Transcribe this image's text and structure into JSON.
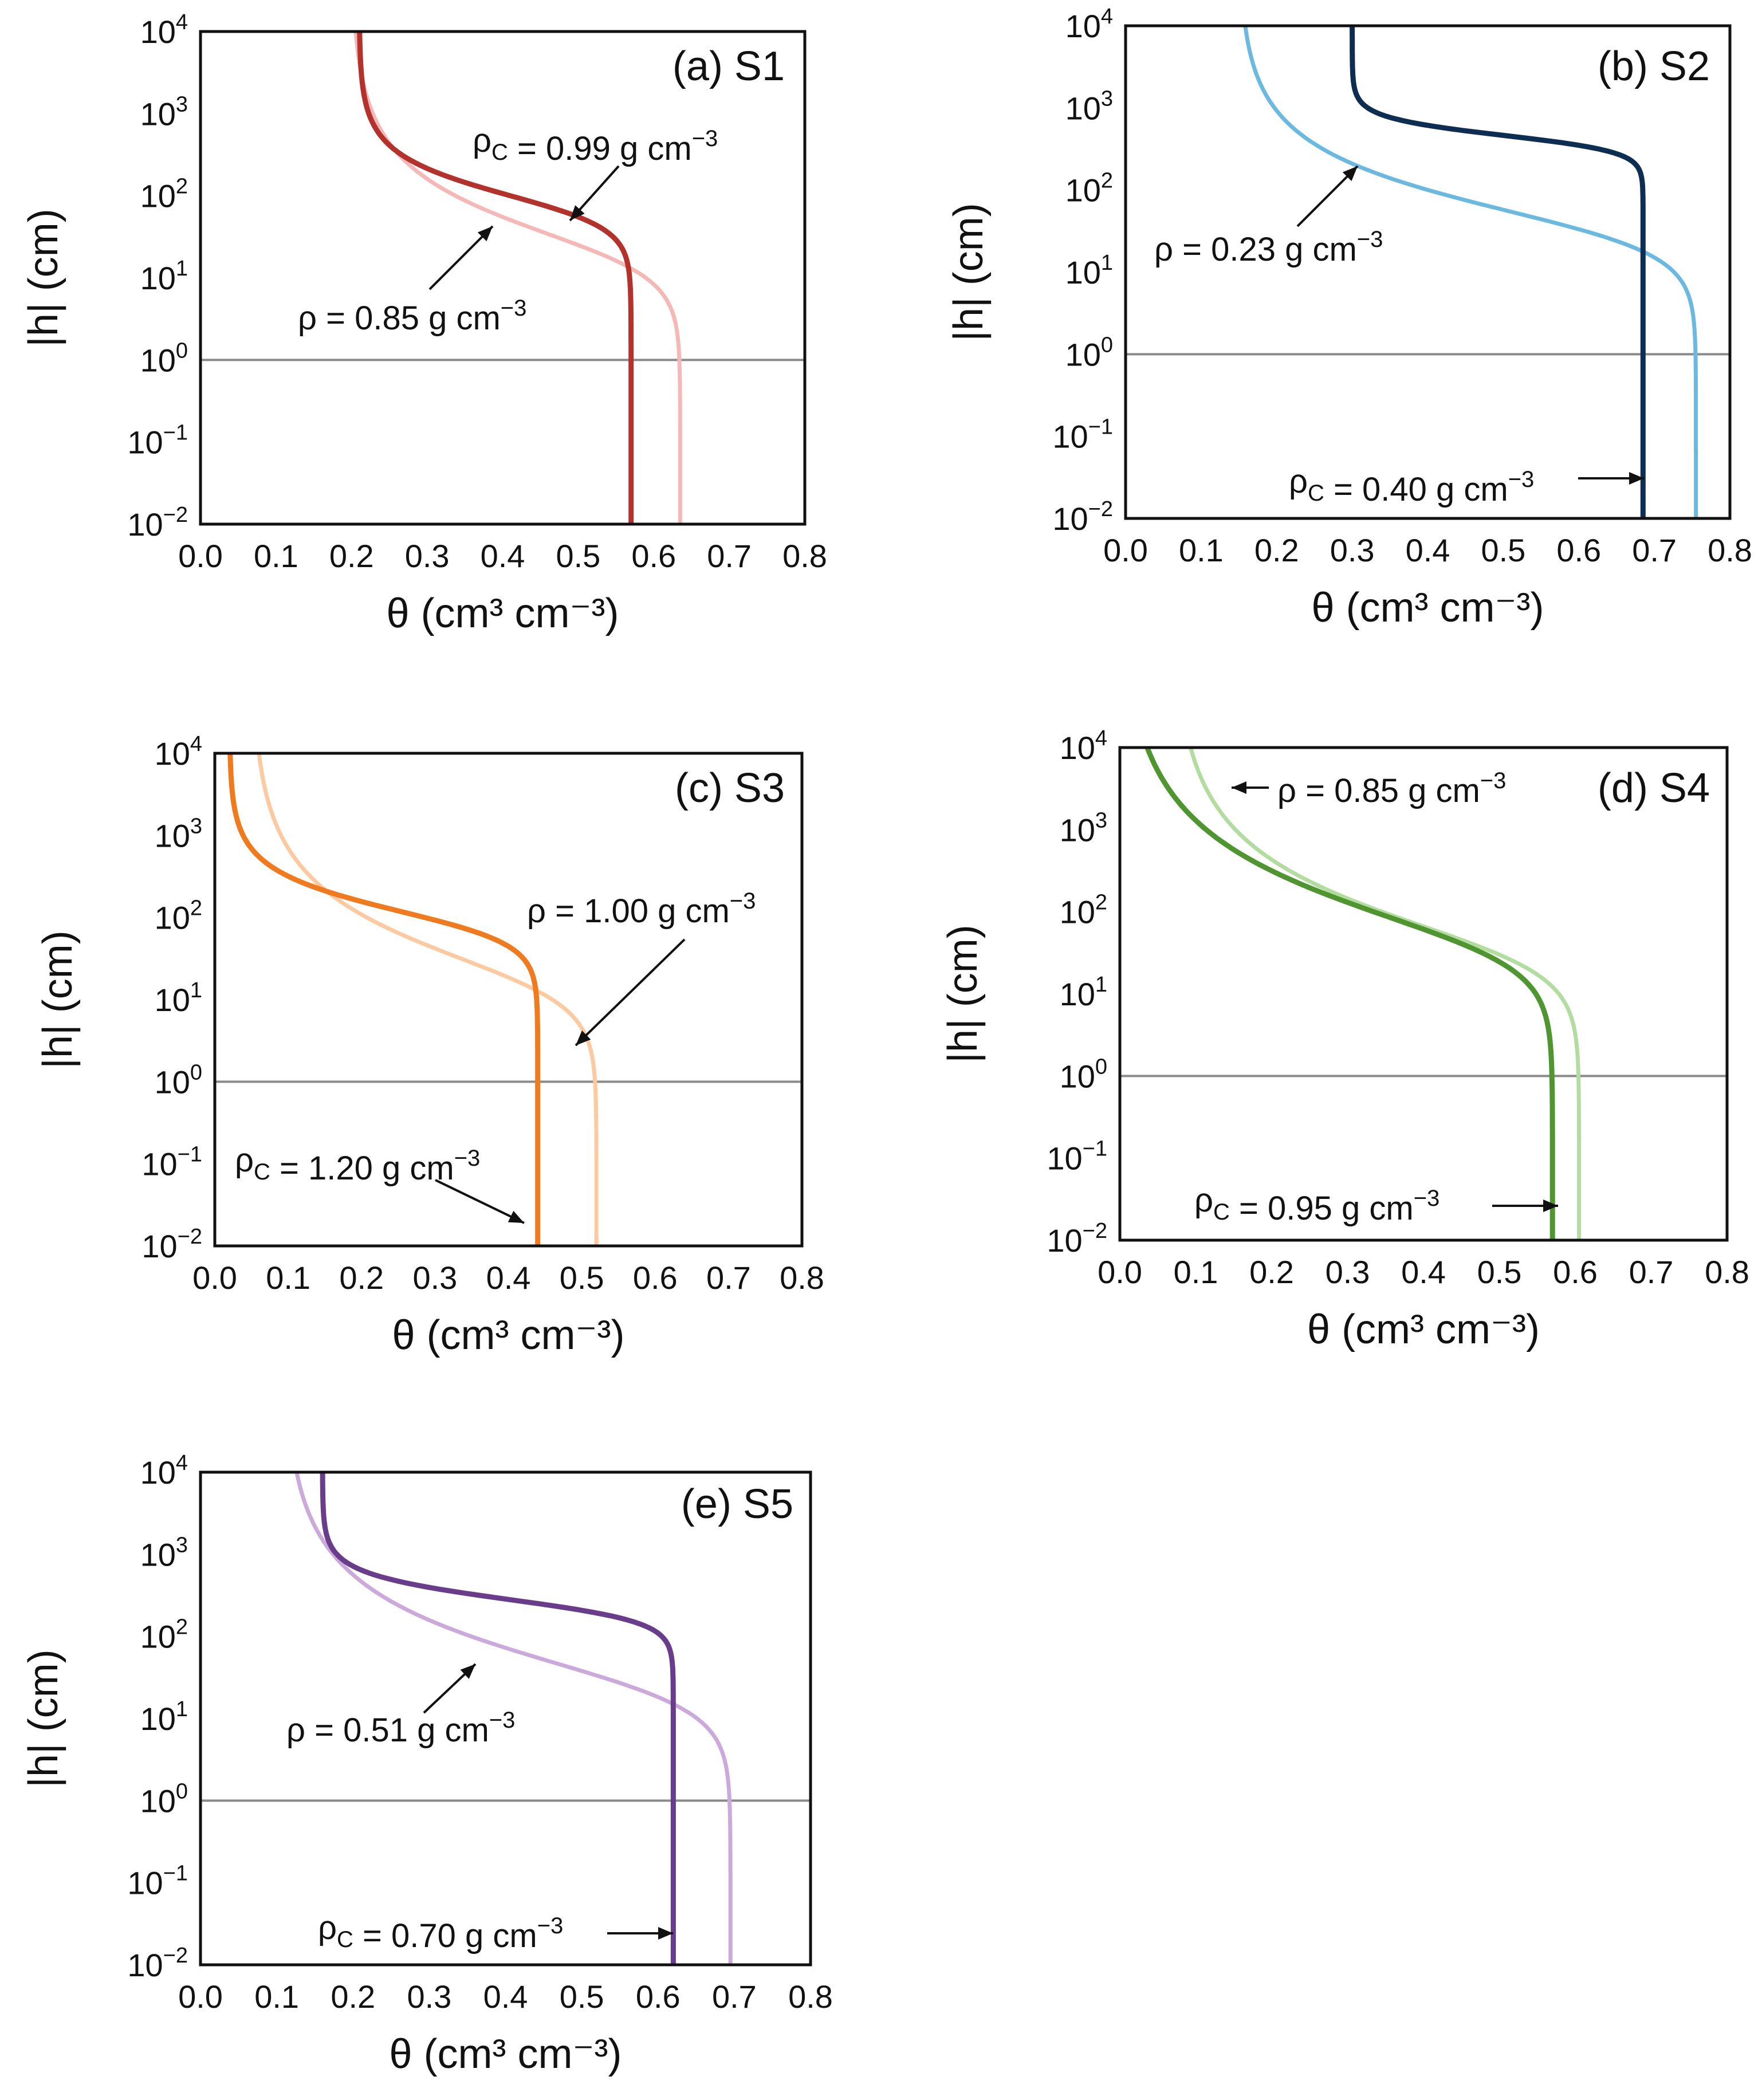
{
  "figure": {
    "xlabel": "θ (cm³ cm⁻³)",
    "ylabel": "|h| (cm)"
  },
  "chart_data": [
    {
      "type": "line",
      "panel": "(a) S1",
      "xlabel": "θ (cm³ cm⁻³)",
      "ylabel": "|h| (cm)",
      "xlim": [
        0.0,
        0.8
      ],
      "ylim": [
        0.01,
        10000
      ],
      "yscale": "log",
      "xticks": [
        "0.0",
        "0.1",
        "0.2",
        "0.3",
        "0.4",
        "0.5",
        "0.6",
        "0.7",
        "0.8"
      ],
      "yticks": [
        {
          "base": "10",
          "exp": "4"
        },
        {
          "base": "10",
          "exp": "3"
        },
        {
          "base": "10",
          "exp": "2"
        },
        {
          "base": "10",
          "exp": "1"
        },
        {
          "base": "10",
          "exp": "0"
        },
        {
          "base": "10",
          "exp": "−1"
        },
        {
          "base": "10",
          "exp": "−2"
        }
      ],
      "hline": 1,
      "series": [
        {
          "name": "ρ = 0.85 g cm⁻³",
          "color": "#f6b8b6",
          "width": 7,
          "theta_r": 0.2,
          "theta_s": 0.635,
          "alpha": 0.05,
          "n": 1.7
        },
        {
          "name": "ρC = 0.99 g cm⁻³",
          "color": "#b3322b",
          "width": 9,
          "theta_r": 0.21,
          "theta_s": 0.57,
          "alpha": 0.013,
          "n": 2.3
        }
      ],
      "annotations": [
        {
          "pre": "ρ",
          "sub": "C",
          "mid": " = 0.99 g cm",
          "sup": "−3",
          "target_series": 1
        },
        {
          "pre": "ρ",
          "sub": "",
          "mid": " = 0.85 g cm",
          "sup": "−3",
          "target_series": 0
        }
      ]
    },
    {
      "type": "line",
      "panel": "(b) S2",
      "xlabel": "θ (cm³ cm⁻³)",
      "ylabel": "|h| (cm)",
      "xlim": [
        0.0,
        0.8
      ],
      "ylim": [
        0.01,
        10000
      ],
      "yscale": "log",
      "xticks": [
        "0.0",
        "0.1",
        "0.2",
        "0.3",
        "0.4",
        "0.5",
        "0.6",
        "0.7",
        "0.8"
      ],
      "yticks": [
        {
          "base": "10",
          "exp": "4"
        },
        {
          "base": "10",
          "exp": "3"
        },
        {
          "base": "10",
          "exp": "2"
        },
        {
          "base": "10",
          "exp": "1"
        },
        {
          "base": "10",
          "exp": "0"
        },
        {
          "base": "10",
          "exp": "−1"
        },
        {
          "base": "10",
          "exp": "−2"
        }
      ],
      "hline": 1,
      "series": [
        {
          "name": "ρ = 0.23 g cm⁻³",
          "color": "#6bb8e0",
          "width": 7,
          "theta_r": 0.15,
          "theta_s": 0.755,
          "alpha": 0.03,
          "n": 1.75
        },
        {
          "name": "ρC = 0.40 g cm⁻³",
          "color": "#0d2e52",
          "width": 9,
          "theta_r": 0.3,
          "theta_s": 0.685,
          "alpha": 0.0023,
          "n": 4.5
        }
      ],
      "annotations": [
        {
          "pre": "ρ",
          "sub": "",
          "mid": " = 0.23 g cm",
          "sup": "−3",
          "target_series": 0
        },
        {
          "pre": "ρ",
          "sub": "C",
          "mid": " = 0.40 g cm",
          "sup": "−3",
          "target_series": 1
        }
      ]
    },
    {
      "type": "line",
      "panel": "(c) S3",
      "xlabel": "θ (cm³ cm⁻³)",
      "ylabel": "|h| (cm)",
      "xlim": [
        0.0,
        0.8
      ],
      "ylim": [
        0.01,
        10000
      ],
      "yscale": "log",
      "xticks": [
        "0.0",
        "0.1",
        "0.2",
        "0.3",
        "0.4",
        "0.5",
        "0.6",
        "0.7",
        "0.8"
      ],
      "yticks": [
        {
          "base": "10",
          "exp": "4"
        },
        {
          "base": "10",
          "exp": "3"
        },
        {
          "base": "10",
          "exp": "2"
        },
        {
          "base": "10",
          "exp": "1"
        },
        {
          "base": "10",
          "exp": "0"
        },
        {
          "base": "10",
          "exp": "−1"
        },
        {
          "base": "10",
          "exp": "−2"
        }
      ],
      "hline": 1,
      "series": [
        {
          "name": "ρ = 1.00 g cm⁻³",
          "color": "#fcc9a0",
          "width": 7,
          "theta_r": 0.05,
          "theta_s": 0.52,
          "alpha": 0.06,
          "n": 1.6
        },
        {
          "name": "ρC = 1.20 g cm⁻³",
          "color": "#f07a1e",
          "width": 9,
          "theta_r": 0.02,
          "theta_s": 0.44,
          "alpha": 0.011,
          "n": 2.3
        }
      ],
      "annotations": [
        {
          "pre": "ρ",
          "sub": "",
          "mid": " = 1.00 g cm",
          "sup": "−3",
          "target_series": 0
        },
        {
          "pre": "ρ",
          "sub": "C",
          "mid": " = 1.20 g cm",
          "sup": "−3",
          "target_series": 1
        }
      ]
    },
    {
      "type": "line",
      "panel": "(d) S4",
      "xlabel": "θ (cm³ cm⁻³)",
      "ylabel": "|h| (cm)",
      "xlim": [
        0.0,
        0.8
      ],
      "ylim": [
        0.01,
        10000
      ],
      "yscale": "log",
      "xticks": [
        "0.0",
        "0.1",
        "0.2",
        "0.3",
        "0.4",
        "0.5",
        "0.6",
        "0.7",
        "0.8"
      ],
      "yticks": [
        {
          "base": "10",
          "exp": "4"
        },
        {
          "base": "10",
          "exp": "3"
        },
        {
          "base": "10",
          "exp": "2"
        },
        {
          "base": "10",
          "exp": "1"
        },
        {
          "base": "10",
          "exp": "0"
        },
        {
          "base": "10",
          "exp": "−1"
        },
        {
          "base": "10",
          "exp": "−2"
        }
      ],
      "hline": 1,
      "series": [
        {
          "name": "ρ = 0.85 g cm⁻³",
          "color": "#b3dca0",
          "width": 7,
          "theta_r": 0.07,
          "theta_s": 0.605,
          "alpha": 0.03,
          "n": 1.55
        },
        {
          "name": "ρC = 0.95 g cm⁻³",
          "color": "#4f9530",
          "width": 9,
          "theta_r": 0.0,
          "theta_s": 0.57,
          "alpha": 0.025,
          "n": 1.5
        }
      ],
      "annotations": [
        {
          "pre": "ρ",
          "sub": "",
          "mid": " = 0.85 g cm",
          "sup": "−3",
          "target_series": 0
        },
        {
          "pre": "ρ",
          "sub": "C",
          "mid": " = 0.95 g cm",
          "sup": "−3",
          "target_series": 1
        }
      ]
    },
    {
      "type": "line",
      "panel": "(e) S5",
      "xlabel": "θ (cm³ cm⁻³)",
      "ylabel": "|h| (cm)",
      "xlim": [
        0.0,
        0.8
      ],
      "ylim": [
        0.01,
        10000
      ],
      "yscale": "log",
      "xticks": [
        "0.0",
        "0.1",
        "0.2",
        "0.3",
        "0.4",
        "0.5",
        "0.6",
        "0.7",
        "0.8"
      ],
      "yticks": [
        {
          "base": "10",
          "exp": "4"
        },
        {
          "base": "10",
          "exp": "3"
        },
        {
          "base": "10",
          "exp": "2"
        },
        {
          "base": "10",
          "exp": "1"
        },
        {
          "base": "10",
          "exp": "0"
        },
        {
          "base": "10",
          "exp": "−1"
        },
        {
          "base": "10",
          "exp": "−2"
        }
      ],
      "hline": 1,
      "series": [
        {
          "name": "ρ = 0.51 g cm⁻³",
          "color": "#cba9da",
          "width": 7,
          "theta_r": 0.11,
          "theta_s": 0.695,
          "alpha": 0.04,
          "n": 1.6
        },
        {
          "name": "ρC = 0.70 g cm⁻³",
          "color": "#6a3d8c",
          "width": 9,
          "theta_r": 0.16,
          "theta_s": 0.62,
          "alpha": 0.004,
          "n": 3.3
        }
      ],
      "annotations": [
        {
          "pre": "ρ",
          "sub": "",
          "mid": " = 0.51 g cm",
          "sup": "−3",
          "target_series": 0
        },
        {
          "pre": "ρ",
          "sub": "C",
          "mid": " = 0.70 g cm",
          "sup": "−3",
          "target_series": 1
        }
      ]
    }
  ]
}
